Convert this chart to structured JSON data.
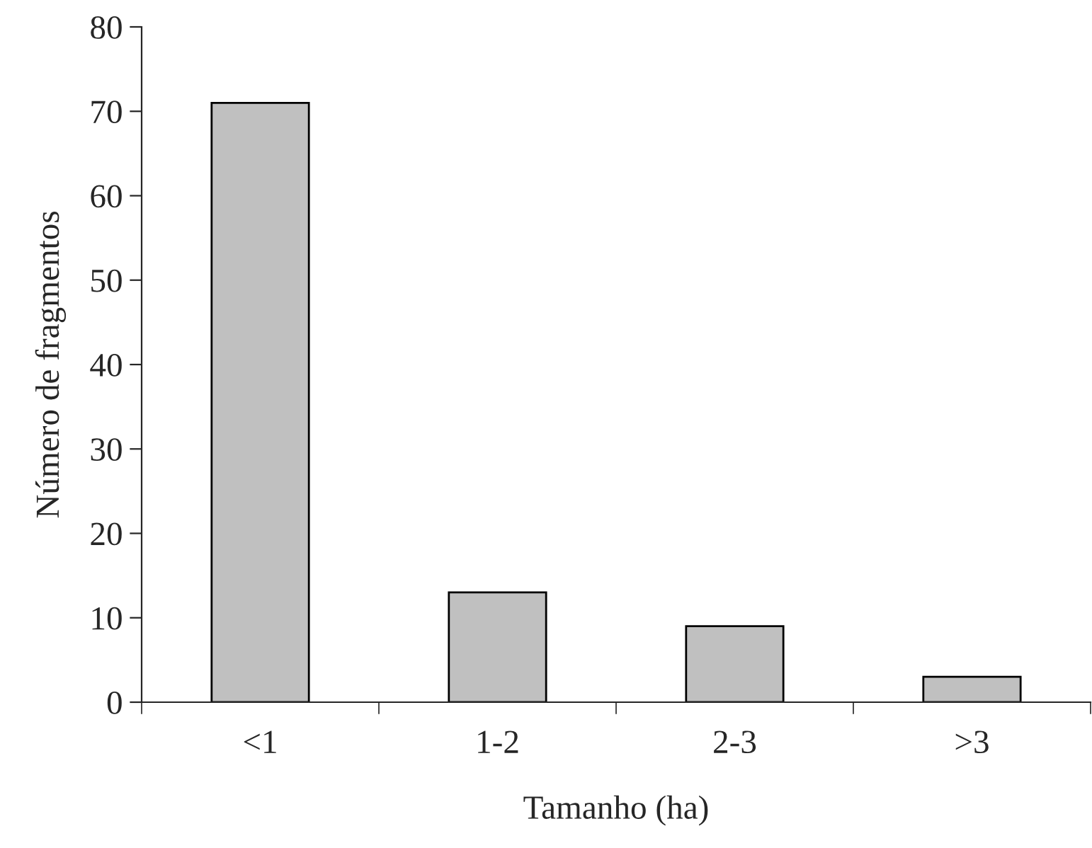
{
  "chart_data": {
    "type": "bar",
    "xlabel": "Tamanho (ha)",
    "ylabel": "Número de fragmentos",
    "categories": [
      "<1",
      "1-2",
      "2-3",
      ">3"
    ],
    "values": [
      71,
      13,
      9,
      3
    ],
    "color": "#c0c0c0",
    "ylim": [
      0,
      80
    ],
    "yticks": [
      0,
      10,
      20,
      30,
      40,
      50,
      60,
      70,
      80
    ],
    "grid": false,
    "legend": false
  }
}
